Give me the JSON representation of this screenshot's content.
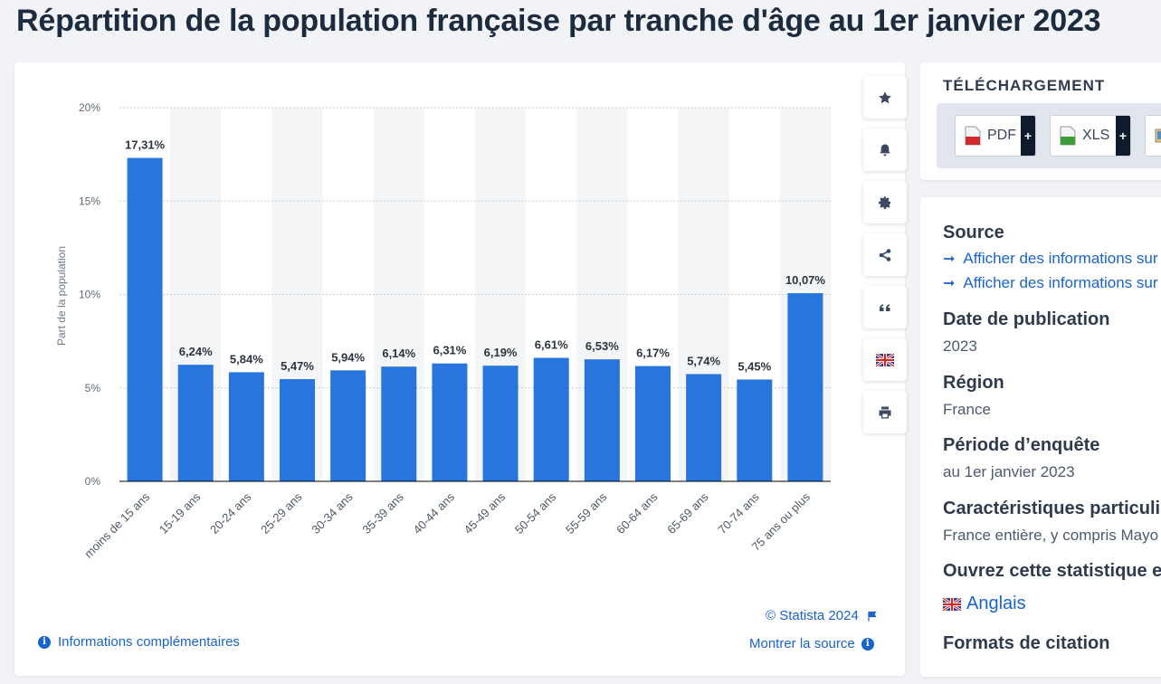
{
  "title": "Répartition de la population française par tranche d'âge au 1er janvier 2023",
  "chart_data": {
    "type": "bar",
    "title": "",
    "xlabel": "",
    "ylabel": "Part de la population",
    "ylim": [
      0,
      20
    ],
    "yticks": [
      "0%",
      "5%",
      "10%",
      "15%",
      "20%"
    ],
    "ytick_values": [
      0,
      5,
      10,
      15,
      20
    ],
    "grid": "horizontal dotted",
    "categories": [
      "moins de 15 ans",
      "15-19 ans",
      "20-24 ans",
      "25-29 ans",
      "30-34 ans",
      "35-39 ans",
      "40-44 ans",
      "45-49 ans",
      "50-54 ans",
      "55-59 ans",
      "60-64 ans",
      "65-69 ans",
      "70-74 ans",
      "75 ans ou plus"
    ],
    "values": [
      17.31,
      6.24,
      5.84,
      5.47,
      5.94,
      6.14,
      6.31,
      6.19,
      6.61,
      6.53,
      6.17,
      5.74,
      5.45,
      10.07
    ],
    "value_labels": [
      "17,31%",
      "6,24%",
      "5,84%",
      "5,47%",
      "5,94%",
      "6,14%",
      "6,31%",
      "6,19%",
      "6,61%",
      "6,53%",
      "6,17%",
      "5,74%",
      "5,45%",
      "10,07%"
    ],
    "bar_color": "#2876dd"
  },
  "chart_footer": {
    "copyright": "© Statista 2024",
    "more_info": "Informations complémentaires",
    "show_source": "Montrer la source"
  },
  "toolbar": [
    "star-icon",
    "bell-icon",
    "gear-icon",
    "share-icon",
    "quote-icon",
    "flag-icon",
    "print-icon"
  ],
  "download": {
    "heading": "TÉLÉCHARGEMENT",
    "pdf": "PDF",
    "xls": "XLS",
    "plus": "+"
  },
  "info": {
    "source_heading": "Source",
    "source_link_1": "Afficher des informations sur",
    "source_link_2": "Afficher des informations sur",
    "date_heading": "Date de publication",
    "date_value": "2023",
    "region_heading": "Région",
    "region_value": "France",
    "period_heading": "Période d’enquête",
    "period_value": "au 1er janvier 2023",
    "features_heading": "Caractéristiques particuliè",
    "features_value": "France entière, y compris Mayo",
    "open_heading": "Ouvrez cette statistique e",
    "language_link": "Anglais",
    "citation_heading": "Formats de citation"
  },
  "colors": {
    "accent": "#1964c8",
    "bar": "#2876dd",
    "title": "#1d2b3f"
  }
}
